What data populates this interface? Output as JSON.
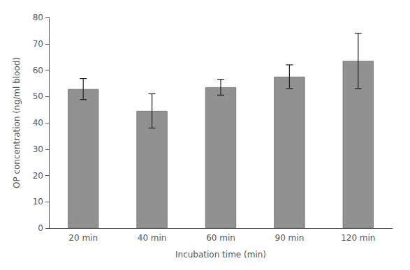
{
  "chart_data": {
    "type": "bar",
    "categories": [
      "20 min",
      "40 min",
      "60 min",
      "90 min",
      "120 min"
    ],
    "values": [
      52.8,
      44.5,
      53.5,
      57.5,
      63.5
    ],
    "errors": [
      4.0,
      6.5,
      3.0,
      4.5,
      10.5
    ],
    "color": "#919191",
    "xlabel": "Incubation time (min)",
    "ylabel": "OP concentration (ng/ml blood)",
    "ylim": [
      0,
      80
    ],
    "yticks": [
      0,
      10,
      20,
      30,
      40,
      50,
      60,
      70,
      80
    ],
    "grid": false
  }
}
